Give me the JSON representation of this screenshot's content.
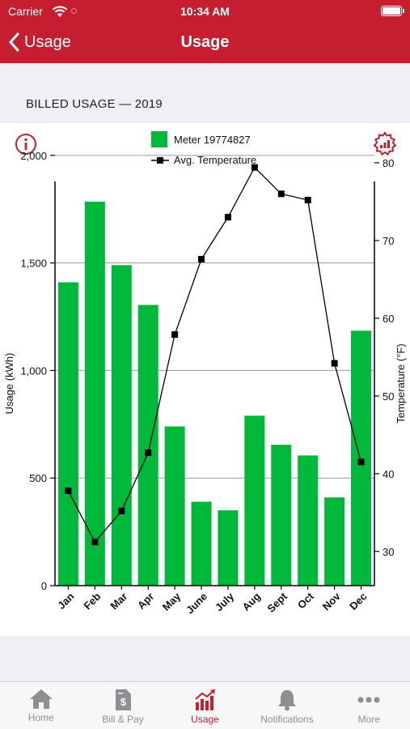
{
  "status_bar": {
    "carrier": "Carrier",
    "time": "10:34 AM"
  },
  "nav": {
    "back_label": "Usage",
    "title": "Usage"
  },
  "section": {
    "title": "BILLED USAGE — 2019"
  },
  "chart_data": {
    "type": "bar",
    "categories": [
      "Jan",
      "Feb",
      "Mar",
      "Apr",
      "May",
      "June",
      "July",
      "Aug",
      "Sept",
      "Oct",
      "Nov",
      "Dec"
    ],
    "series": [
      {
        "name": "Meter 19774827",
        "type": "bar",
        "axis": "left",
        "color": "#00b83a",
        "values": [
          1410,
          1785,
          1490,
          1305,
          740,
          390,
          350,
          790,
          655,
          605,
          410,
          1185
        ]
      },
      {
        "name": "Avg. Temperature",
        "type": "line",
        "axis": "right",
        "color": "#000000",
        "values": [
          37.8,
          31.2,
          35.2,
          42.7,
          57.9,
          67.6,
          73.0,
          79.4,
          76.0,
          75.2,
          54.2,
          41.5
        ]
      }
    ],
    "ylabel": "Usage (kWh)",
    "y2label": "Temperature (°F)",
    "ylim": [
      0,
      2150
    ],
    "yticks": [
      0,
      500,
      1000,
      1500,
      2000
    ],
    "ytick_labels": [
      "0",
      "500",
      "1,000",
      "1,500",
      "2,000"
    ],
    "y2lim": [
      25.6,
      85.1
    ],
    "y2ticks": [
      30,
      40,
      50,
      60,
      70,
      80
    ],
    "grid": true,
    "legend_position": "top-center"
  },
  "icons": {
    "info": "info-icon",
    "chart_settings": "gear-chart-icon",
    "accent_color": "#c41e30"
  },
  "tabs": [
    {
      "label": "Home",
      "icon": "home-icon",
      "active": false
    },
    {
      "label": "Bill & Pay",
      "icon": "bill-icon",
      "active": false
    },
    {
      "label": "Usage",
      "icon": "usage-chart-icon",
      "active": true
    },
    {
      "label": "Notifications",
      "icon": "bell-icon",
      "active": false
    },
    {
      "label": "More",
      "icon": "more-icon",
      "active": false
    }
  ]
}
